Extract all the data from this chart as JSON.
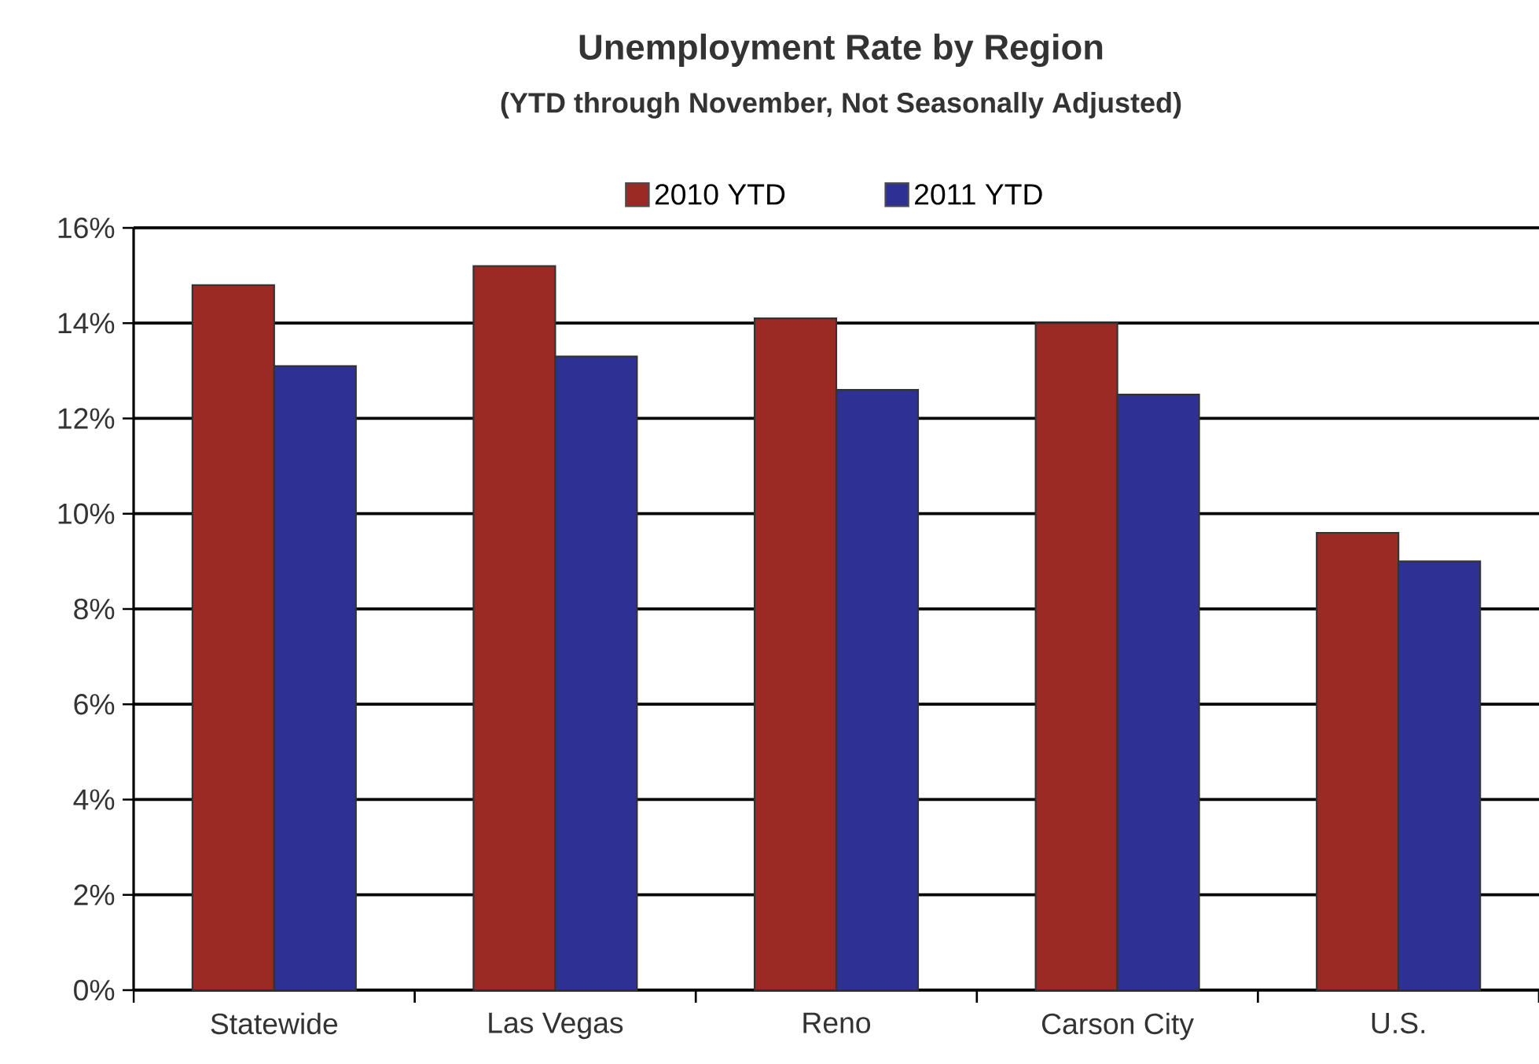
{
  "chart_data": {
    "type": "bar",
    "title": "Unemployment Rate by Region",
    "subtitle": "(YTD through November,  Not Seasonally Adjusted)",
    "categories": [
      "Statewide",
      "Las Vegas",
      "Reno",
      "Carson City",
      "U.S."
    ],
    "series": [
      {
        "name": "2010 YTD",
        "color": "#9b2a25",
        "values": [
          14.8,
          15.2,
          14.1,
          14.0,
          9.6
        ]
      },
      {
        "name": "2011 YTD",
        "color": "#2e3192",
        "values": [
          13.1,
          13.3,
          12.6,
          12.5,
          9.0
        ]
      }
    ],
    "ylim": [
      0,
      16
    ],
    "yticks": [
      {
        "value": 0,
        "label": "0%"
      },
      {
        "value": 2,
        "label": "2%"
      },
      {
        "value": 4,
        "label": "4%"
      },
      {
        "value": 6,
        "label": "6%"
      },
      {
        "value": 8,
        "label": "8%"
      },
      {
        "value": 10,
        "label": "10%"
      },
      {
        "value": 12,
        "label": "12%"
      },
      {
        "value": 14,
        "label": "14%"
      },
      {
        "value": 16,
        "label": "16%"
      }
    ],
    "grid": "y",
    "legend": "top"
  }
}
